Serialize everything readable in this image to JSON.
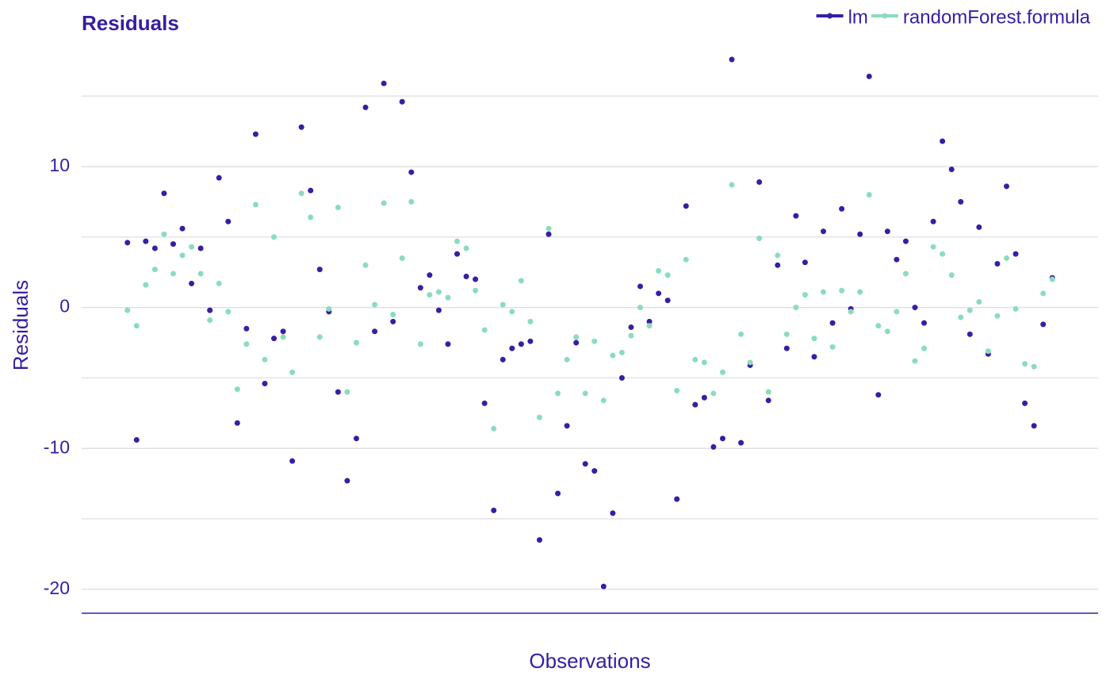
{
  "chart_data": {
    "type": "scatter",
    "title": "Residuals",
    "xlabel": "Observations",
    "ylabel": "Residuals",
    "x": [
      1,
      2,
      3,
      4,
      5,
      6,
      7,
      8,
      9,
      10,
      11,
      12,
      13,
      14,
      15,
      16,
      17,
      18,
      19,
      20,
      21,
      22,
      23,
      24,
      25,
      26,
      27,
      28,
      29,
      30,
      31,
      32,
      33,
      34,
      35,
      36,
      37,
      38,
      39,
      40,
      41,
      42,
      43,
      44,
      45,
      46,
      47,
      48,
      49,
      50,
      51,
      52,
      53,
      54,
      55,
      56,
      57,
      58,
      59,
      60,
      61,
      62,
      63,
      64,
      65,
      66,
      67,
      68,
      69,
      70,
      71,
      72,
      73,
      74,
      75,
      76,
      77,
      78,
      79,
      80,
      81,
      82,
      83,
      84,
      85,
      86,
      87,
      88,
      89,
      90,
      91,
      92,
      93,
      94,
      95,
      96,
      97,
      98,
      99,
      100,
      101,
      102
    ],
    "series": [
      {
        "name": "lm",
        "color": "#371ea3",
        "values": [
          4.6,
          -9.4,
          4.7,
          4.2,
          8.1,
          4.5,
          5.6,
          1.7,
          4.2,
          -0.2,
          9.2,
          6.1,
          -8.2,
          -1.5,
          12.3,
          -5.4,
          -2.2,
          -1.7,
          -10.9,
          12.8,
          8.3,
          2.7,
          -0.3,
          -6.0,
          -12.3,
          -9.3,
          14.2,
          -1.7,
          15.9,
          -1.0,
          14.6,
          9.6,
          1.4,
          2.3,
          -0.2,
          -2.6,
          3.8,
          2.2,
          2.0,
          -6.8,
          -14.4,
          -3.7,
          -2.9,
          -2.6,
          -2.4,
          -16.5,
          5.2,
          -13.2,
          -8.4,
          -2.5,
          -11.1,
          -11.6,
          -19.8,
          -14.6,
          -5.0,
          -1.4,
          1.5,
          -1.0,
          1.0,
          0.5,
          -13.6,
          7.2,
          -6.9,
          -6.4,
          -9.9,
          -9.3,
          17.6,
          -9.6,
          -4.1,
          8.9,
          -6.6,
          3.0,
          -2.9,
          6.5,
          3.2,
          -3.5,
          5.4,
          -1.1,
          7.0,
          -0.1,
          5.2,
          16.4,
          -6.2,
          5.4,
          3.4,
          4.7,
          0.0,
          -1.1,
          6.1,
          11.8,
          9.8,
          7.5,
          -1.9,
          5.7,
          -3.3,
          3.1,
          8.6,
          3.8,
          -6.8,
          -8.4,
          -1.2,
          2.1
        ]
      },
      {
        "name": "randomForest.formula",
        "color": "#8bdcbe",
        "values": [
          -0.2,
          -1.3,
          1.6,
          2.7,
          5.2,
          2.4,
          3.7,
          4.3,
          2.4,
          -0.9,
          1.7,
          -0.3,
          -5.8,
          -2.6,
          7.3,
          -3.7,
          5.0,
          -2.1,
          -4.6,
          8.1,
          6.4,
          -2.1,
          -0.1,
          7.1,
          -6.0,
          -2.5,
          3.0,
          0.2,
          7.4,
          -0.5,
          3.5,
          7.5,
          -2.6,
          0.9,
          1.1,
          0.7,
          4.7,
          4.2,
          1.2,
          -1.6,
          -8.6,
          0.2,
          -0.3,
          1.9,
          -1.0,
          -7.8,
          5.6,
          -6.1,
          -3.7,
          -2.1,
          -6.1,
          -2.4,
          -6.6,
          -3.4,
          -3.2,
          -2.0,
          0.0,
          -1.3,
          2.6,
          2.3,
          -5.9,
          3.4,
          -3.7,
          -3.9,
          -6.1,
          -4.6,
          8.7,
          -1.9,
          -3.9,
          4.9,
          -6.0,
          3.7,
          -1.9,
          0.0,
          0.9,
          -2.2,
          1.1,
          -2.8,
          1.2,
          -0.3,
          1.1,
          8.0,
          -1.3,
          -1.7,
          -0.3,
          2.4,
          -3.8,
          -2.9,
          4.3,
          3.8,
          2.3,
          -0.7,
          -0.2,
          0.4,
          -3.1,
          -0.6,
          3.5,
          -0.1,
          -4.0,
          -4.2,
          1.0,
          2.0
        ]
      }
    ],
    "xlim": [
      -4,
      107
    ],
    "ylim": [
      -21.7,
      18.5
    ],
    "yticks": [
      -20,
      -10,
      0,
      10
    ],
    "grid": true,
    "minor_grid": true,
    "legend": "top-right"
  }
}
